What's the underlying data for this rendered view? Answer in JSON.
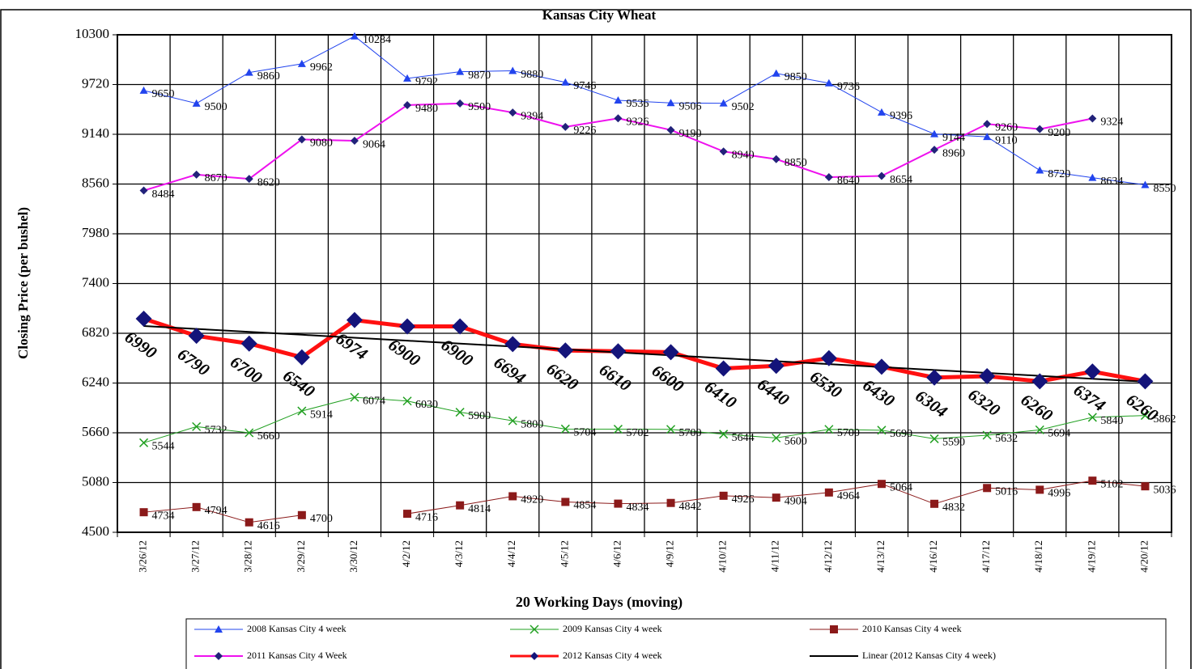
{
  "chart_data": {
    "type": "line",
    "title": "Kansas City Wheat",
    "y_label": "Closing Price (per bushel)",
    "x_label": "20 Working  Days (moving)",
    "categories": [
      "3/26/12",
      "3/27/12",
      "3/28/12",
      "3/29/12",
      "3/30/12",
      "4/2/12",
      "4/3/12",
      "4/4/12",
      "4/5/12",
      "4/6/12",
      "4/9/12",
      "4/10/12",
      "4/11/12",
      "4/12/12",
      "4/13/12",
      "4/16/12",
      "4/17/12",
      "4/18/12",
      "4/19/12",
      "4/20/12"
    ],
    "ylim": [
      4500,
      10300
    ],
    "yticks": [
      4500,
      5080,
      5660,
      6240,
      6820,
      7400,
      7980,
      8560,
      9140,
      9720,
      10300
    ],
    "grid": true,
    "legend": "bottom",
    "series": [
      {
        "name": "2008 Kansas City 4 week",
        "color": "#2244ee",
        "marker": "triangle",
        "marker_color": "#2244ee",
        "line_width": 1,
        "label_style": "small",
        "values": [
          9650,
          9500,
          9860,
          9962,
          10284,
          9792,
          9870,
          9880,
          9746,
          9536,
          9506,
          9502,
          9850,
          9736,
          9396,
          9144,
          9110,
          8720,
          8634,
          8550
        ]
      },
      {
        "name": "2009 Kansas City 4 week",
        "color": "#22a022",
        "marker": "x",
        "marker_color": "#22a022",
        "line_width": 1,
        "label_style": "small",
        "values": [
          5544,
          5732,
          5660,
          5914,
          6074,
          6030,
          5900,
          5800,
          5704,
          5702,
          5700,
          5644,
          5600,
          5700,
          5690,
          5590,
          5632,
          5694,
          5840,
          5862
        ]
      },
      {
        "name": "2010 Kansas City 4 week",
        "color": "#8b1a1a",
        "marker": "square",
        "marker_color": "#8b1a1a",
        "line_width": 1,
        "label_style": "small",
        "values": [
          4734,
          4794,
          4616,
          4700,
          null,
          4716,
          4814,
          4920,
          4854,
          4834,
          4842,
          4926,
          4904,
          4964,
          5064,
          4832,
          5016,
          4996,
          5102,
          5036
        ]
      },
      {
        "name": "2011 Kansas City 4 Week",
        "color": "#ee11ee",
        "marker": "diamond",
        "marker_color": "#22227a",
        "line_width": 2,
        "label_style": "small",
        "values": [
          8484,
          8670,
          8620,
          9080,
          9064,
          9480,
          9500,
          9394,
          9226,
          9326,
          9190,
          8940,
          8850,
          8640,
          8654,
          8960,
          9260,
          9200,
          9324,
          null
        ]
      },
      {
        "name": "2012 Kansas City 4 week",
        "color": "#ff1010",
        "marker": "big-diamond",
        "marker_color": "#14147a",
        "line_width": 5,
        "label_style": "big",
        "values": [
          6990,
          6790,
          6700,
          6540,
          6974,
          6900,
          6900,
          6694,
          6620,
          6610,
          6600,
          6410,
          6440,
          6530,
          6430,
          6304,
          6320,
          6260,
          6374,
          6260
        ]
      },
      {
        "name": "Linear (2012 Kansas City 4 week)",
        "color": "#000000",
        "marker": "none",
        "marker_color": "#000000",
        "line_width": 2,
        "label_style": "none",
        "values": [
          6905,
          6871,
          6837,
          6803,
          6768,
          6734,
          6700,
          6666,
          6632,
          6597,
          6563,
          6529,
          6495,
          6461,
          6426,
          6392,
          6358,
          6324,
          6290,
          6255
        ]
      }
    ]
  }
}
